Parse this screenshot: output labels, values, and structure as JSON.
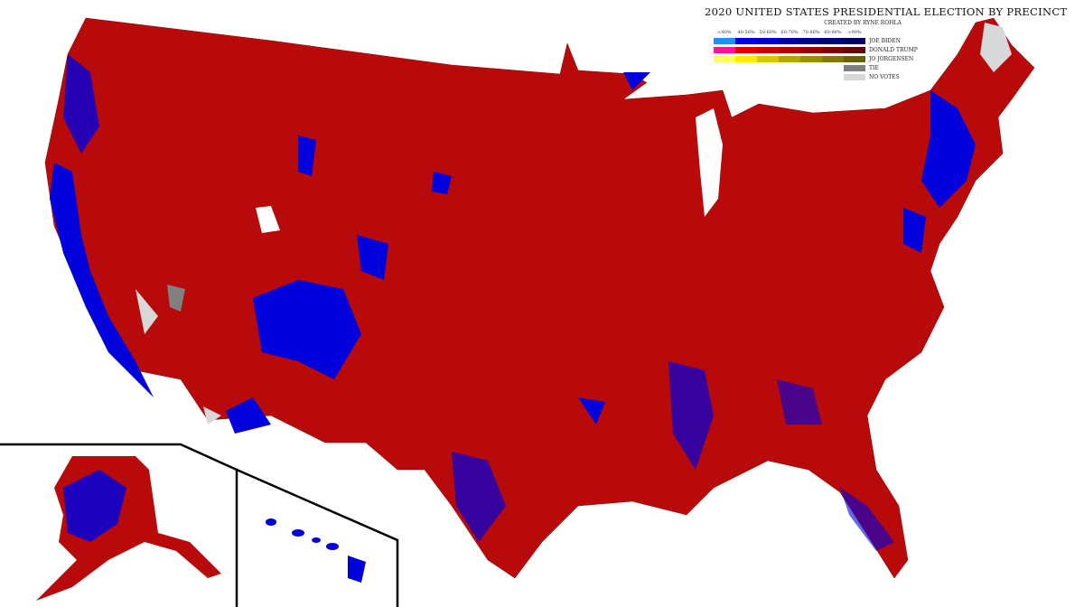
{
  "title": "2020 UNITED STATES PRESIDENTIAL ELECTION BY PRECINCT",
  "subtitle": "CREATED BY RYNE ROHLA",
  "legend": {
    "brackets": [
      "<40%",
      "40-50%",
      "50-60%",
      "60-70%",
      "70-80%",
      "80-90%",
      ">90%"
    ],
    "rows": [
      {
        "label": "JOE BIDEN",
        "colors": [
          "#1e90ff",
          "#0000e0",
          "#0000c8",
          "#0000b0",
          "#000098",
          "#000080",
          "#000068"
        ]
      },
      {
        "label": "DONALD TRUMP",
        "colors": [
          "#ff1493",
          "#e00000",
          "#c80000",
          "#b00000",
          "#980000",
          "#800000",
          "#680000"
        ]
      },
      {
        "label": "JO JORGENSEN",
        "colors": [
          "#ffff66",
          "#ffee00",
          "#d8c800",
          "#b0a800",
          "#988f00",
          "#807800",
          "#686000"
        ]
      },
      {
        "label": "TIE",
        "colors": [
          "#808080"
        ]
      },
      {
        "label": "NO VOTES",
        "colors": [
          "#d8d8d8"
        ]
      }
    ]
  },
  "colors": {
    "trump": "#c00000",
    "biden": "#0000dd",
    "no_votes": "#d8d8d8",
    "tie": "#808080",
    "inset_border": "#000000"
  }
}
